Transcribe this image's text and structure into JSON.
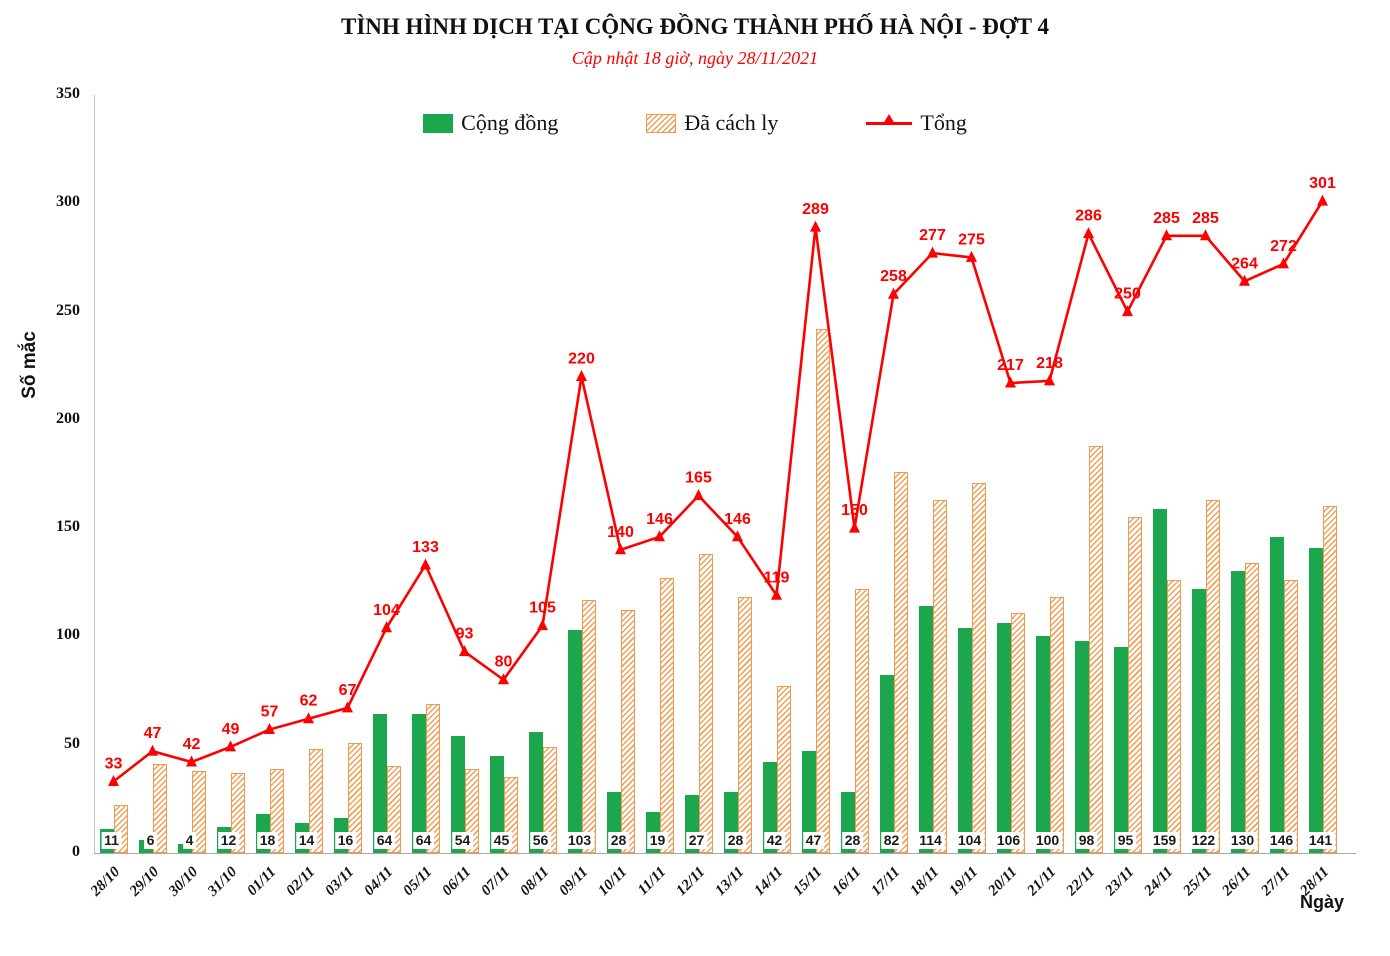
{
  "header": {
    "title": "TÌNH HÌNH DỊCH TẠI CỘNG ĐỒNG THÀNH PHỐ HÀ NỘI - ĐỢT 4",
    "subtitle": "Cập nhật 18 giờ, ngày 28/11/2021"
  },
  "axes": {
    "y_label": "Số mắc",
    "x_label": "Ngày",
    "y_ticks": [
      0,
      50,
      100,
      150,
      200,
      250,
      300,
      350
    ]
  },
  "legend": [
    {
      "label": "Cộng đồng",
      "type": "solid-bar"
    },
    {
      "label": "Đã cách ly",
      "type": "hatched-bar"
    },
    {
      "label": "Tổng",
      "type": "line-triangle"
    }
  ],
  "colors": {
    "green": "#1ca64e",
    "orange": "#f0994f",
    "red": "#fe0000",
    "axis": "#bfbfbf",
    "text": "#111111"
  },
  "chart_data": {
    "type": "bar",
    "subtype": "grouped bars with line overlay",
    "title": "TÌNH HÌNH DỊCH TẠI CỘNG ĐỒNG THÀNH PHỐ HÀ NỘI - ĐỢT 4",
    "subtitle": "Cập nhật 18 giờ, ngày 28/11/2021",
    "xlabel": "Ngày",
    "ylabel": "Số mắc",
    "ylim": [
      0,
      350
    ],
    "grid": false,
    "legend_position": "top",
    "categories": [
      "28/10",
      "29/10",
      "30/10",
      "31/10",
      "01/11",
      "02/11",
      "03/11",
      "04/11",
      "05/11",
      "06/11",
      "07/11",
      "08/11",
      "09/11",
      "10/11",
      "11/11",
      "12/11",
      "13/11",
      "14/11",
      "15/11",
      "16/11",
      "17/11",
      "18/11",
      "19/11",
      "20/11",
      "21/11",
      "22/11",
      "23/11",
      "24/11",
      "25/11",
      "26/11",
      "27/11",
      "28/11"
    ],
    "series": [
      {
        "name": "Cộng đồng",
        "type": "bar",
        "style": "solid-green",
        "labels_shown": true,
        "values": [
          11,
          6,
          4,
          12,
          18,
          14,
          16,
          64,
          64,
          54,
          45,
          56,
          103,
          28,
          19,
          27,
          28,
          42,
          47,
          28,
          82,
          114,
          104,
          106,
          100,
          98,
          95,
          159,
          122,
          130,
          146,
          141
        ]
      },
      {
        "name": "Đã cách ly",
        "type": "bar",
        "style": "orange-hatched",
        "labels_shown": false,
        "values": [
          22,
          41,
          38,
          37,
          39,
          48,
          51,
          40,
          69,
          39,
          35,
          49,
          117,
          112,
          127,
          138,
          118,
          77,
          242,
          122,
          176,
          163,
          171,
          111,
          118,
          188,
          155,
          126,
          163,
          134,
          126,
          160
        ]
      },
      {
        "name": "Tổng",
        "type": "line",
        "style": "red-triangle-markers",
        "labels_shown": true,
        "values": [
          33,
          47,
          42,
          49,
          57,
          62,
          67,
          104,
          133,
          93,
          80,
          105,
          220,
          140,
          146,
          165,
          146,
          119,
          289,
          150,
          258,
          277,
          275,
          217,
          218,
          286,
          250,
          285,
          285,
          264,
          272,
          301
        ]
      }
    ]
  }
}
